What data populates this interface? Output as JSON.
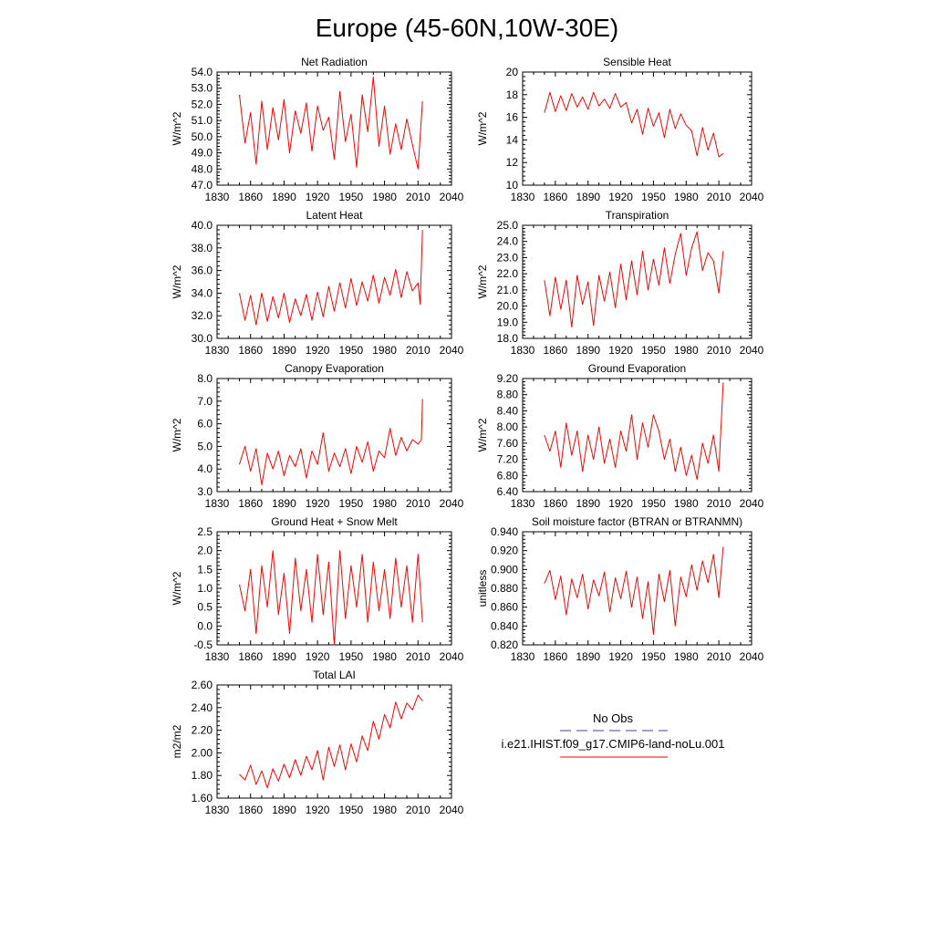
{
  "title": "Europe (45-60N,10W-30E)",
  "series_color": "#ff0000",
  "obs_color": "#4b3f8f",
  "legend": {
    "obs_label": "No Obs",
    "model_label": "i.e21.IHIST.f09_g17.CMIP6-land-noLu.001"
  },
  "chart_data": [
    {
      "type": "line",
      "title": "Net Radiation",
      "ylabel": "W/m^2",
      "xlim": [
        1830,
        2040
      ],
      "xticks": [
        1830,
        1860,
        1890,
        1920,
        1950,
        1980,
        2010,
        2040
      ],
      "ylim": [
        47.0,
        54.0
      ],
      "yticks": [
        "54.0",
        "53.0",
        "52.0",
        "51.0",
        "50.0",
        "49.0",
        "48.0",
        "47.0"
      ],
      "x": [
        1850,
        1855,
        1860,
        1865,
        1870,
        1875,
        1880,
        1885,
        1890,
        1895,
        1900,
        1905,
        1910,
        1915,
        1920,
        1925,
        1930,
        1935,
        1940,
        1945,
        1950,
        1955,
        1960,
        1965,
        1970,
        1975,
        1980,
        1985,
        1990,
        1995,
        2000,
        2005,
        2010,
        2014
      ],
      "series": [
        {
          "values": [
            52.6,
            49.6,
            51.5,
            48.3,
            52.2,
            49.2,
            51.8,
            49.8,
            52.3,
            49.0,
            51.6,
            50.2,
            52.1,
            49.1,
            51.9,
            50.4,
            51.2,
            48.6,
            52.8,
            49.7,
            51.4,
            48.1,
            52.6,
            50.3,
            53.7,
            49.4,
            51.9,
            48.9,
            50.8,
            49.2,
            51.1,
            49.5,
            48.0,
            52.2
          ]
        }
      ]
    },
    {
      "type": "line",
      "title": "Sensible Heat",
      "ylabel": "W/m^2",
      "xlim": [
        1830,
        2040
      ],
      "xticks": [
        1830,
        1860,
        1890,
        1920,
        1950,
        1980,
        2010,
        2040
      ],
      "ylim": [
        10,
        20
      ],
      "yticks": [
        "20",
        "18",
        "16",
        "14",
        "12",
        "10"
      ],
      "x": [
        1850,
        1855,
        1860,
        1865,
        1870,
        1875,
        1880,
        1885,
        1890,
        1895,
        1900,
        1905,
        1910,
        1915,
        1920,
        1925,
        1930,
        1935,
        1940,
        1945,
        1950,
        1955,
        1960,
        1965,
        1970,
        1975,
        1980,
        1985,
        1990,
        1995,
        2000,
        2005,
        2010,
        2014
      ],
      "series": [
        {
          "values": [
            16.4,
            18.2,
            16.5,
            17.9,
            16.6,
            18.1,
            16.9,
            17.8,
            16.7,
            18.2,
            17.0,
            17.6,
            16.8,
            18.1,
            16.9,
            17.3,
            15.5,
            16.7,
            14.5,
            16.8,
            15.2,
            16.4,
            14.2,
            16.7,
            15.0,
            16.3,
            15.3,
            14.8,
            12.6,
            15.1,
            13.1,
            14.6,
            12.5,
            12.8
          ]
        }
      ]
    },
    {
      "type": "line",
      "title": "Latent Heat",
      "ylabel": "W/m^2",
      "xlim": [
        1830,
        2040
      ],
      "xticks": [
        1830,
        1860,
        1890,
        1920,
        1950,
        1980,
        2010,
        2040
      ],
      "ylim": [
        30.0,
        40.0
      ],
      "yticks": [
        "40.0",
        "38.0",
        "36.0",
        "34.0",
        "32.0",
        "30.0"
      ],
      "x": [
        1850,
        1855,
        1860,
        1865,
        1870,
        1875,
        1880,
        1885,
        1890,
        1895,
        1900,
        1905,
        1910,
        1915,
        1920,
        1925,
        1930,
        1935,
        1940,
        1945,
        1950,
        1955,
        1960,
        1965,
        1970,
        1975,
        1980,
        1985,
        1990,
        1995,
        2000,
        2005,
        2010,
        2012,
        2014
      ],
      "series": [
        {
          "values": [
            34.0,
            31.6,
            33.8,
            31.2,
            34.0,
            31.5,
            33.7,
            31.8,
            34.0,
            31.4,
            33.5,
            32.0,
            33.9,
            31.6,
            34.1,
            31.9,
            34.6,
            32.4,
            34.9,
            32.7,
            35.3,
            32.9,
            35.0,
            33.3,
            35.6,
            33.1,
            35.4,
            33.8,
            36.1,
            33.6,
            35.9,
            34.2,
            34.9,
            33.0,
            39.6
          ]
        }
      ]
    },
    {
      "type": "line",
      "title": "Transpiration",
      "ylabel": "W/m^2",
      "xlim": [
        1830,
        2040
      ],
      "xticks": [
        1830,
        1860,
        1890,
        1920,
        1950,
        1980,
        2010,
        2040
      ],
      "ylim": [
        18.0,
        25.0
      ],
      "yticks": [
        "25.0",
        "24.0",
        "23.0",
        "22.0",
        "21.0",
        "20.0",
        "19.0",
        "18.0"
      ],
      "x": [
        1850,
        1855,
        1860,
        1865,
        1870,
        1875,
        1880,
        1885,
        1890,
        1895,
        1900,
        1905,
        1910,
        1915,
        1920,
        1925,
        1930,
        1935,
        1940,
        1945,
        1950,
        1955,
        1960,
        1965,
        1970,
        1975,
        1980,
        1985,
        1990,
        1995,
        2000,
        2005,
        2010,
        2014
      ],
      "series": [
        {
          "values": [
            21.6,
            19.4,
            21.8,
            19.8,
            21.6,
            18.7,
            21.9,
            20.1,
            21.5,
            18.8,
            21.9,
            20.3,
            22.1,
            19.9,
            22.6,
            20.4,
            22.8,
            20.7,
            23.4,
            21.0,
            22.9,
            21.3,
            23.6,
            21.4,
            23.2,
            24.5,
            21.9,
            23.6,
            24.6,
            22.2,
            23.3,
            22.8,
            20.8,
            23.4
          ]
        }
      ]
    },
    {
      "type": "line",
      "title": "Canopy Evaporation",
      "ylabel": "W/m^2",
      "xlim": [
        1830,
        2040
      ],
      "xticks": [
        1830,
        1860,
        1890,
        1920,
        1950,
        1980,
        2010,
        2040
      ],
      "ylim": [
        3.0,
        8.0
      ],
      "yticks": [
        "8.0",
        "7.0",
        "6.0",
        "5.0",
        "4.0",
        "3.0"
      ],
      "x": [
        1850,
        1855,
        1860,
        1865,
        1870,
        1875,
        1880,
        1885,
        1890,
        1895,
        1900,
        1905,
        1910,
        1915,
        1920,
        1925,
        1930,
        1935,
        1940,
        1945,
        1950,
        1955,
        1960,
        1965,
        1970,
        1975,
        1980,
        1985,
        1990,
        1995,
        2000,
        2005,
        2010,
        2013,
        2014
      ],
      "series": [
        {
          "values": [
            4.2,
            5.0,
            3.9,
            4.9,
            3.3,
            4.7,
            4.0,
            4.8,
            3.7,
            4.6,
            4.1,
            4.9,
            3.6,
            4.8,
            4.2,
            5.6,
            3.9,
            4.7,
            4.1,
            4.9,
            3.8,
            5.0,
            4.3,
            5.2,
            3.9,
            4.8,
            4.5,
            5.8,
            4.6,
            5.4,
            4.8,
            5.3,
            5.1,
            5.3,
            7.1
          ]
        }
      ]
    },
    {
      "type": "line",
      "title": "Ground Evaporation",
      "ylabel": "W/m^2",
      "xlim": [
        1830,
        2040
      ],
      "xticks": [
        1830,
        1860,
        1890,
        1920,
        1950,
        1980,
        2010,
        2040
      ],
      "ylim": [
        6.4,
        9.2
      ],
      "yticks": [
        "9.20",
        "8.80",
        "8.40",
        "8.00",
        "7.60",
        "7.20",
        "6.80",
        "6.40"
      ],
      "x": [
        1850,
        1855,
        1860,
        1865,
        1870,
        1875,
        1880,
        1885,
        1890,
        1895,
        1900,
        1905,
        1910,
        1915,
        1920,
        1925,
        1930,
        1935,
        1940,
        1945,
        1950,
        1955,
        1960,
        1965,
        1970,
        1975,
        1980,
        1985,
        1990,
        1995,
        2000,
        2005,
        2010,
        2014
      ],
      "series": [
        {
          "values": [
            7.8,
            7.4,
            7.9,
            7.0,
            8.1,
            7.3,
            7.9,
            6.9,
            7.8,
            7.2,
            8.0,
            7.1,
            7.7,
            7.0,
            7.9,
            7.4,
            8.3,
            7.2,
            8.1,
            7.5,
            8.3,
            7.9,
            7.2,
            7.7,
            6.9,
            7.5,
            6.8,
            7.3,
            6.7,
            7.6,
            7.1,
            7.8,
            6.9,
            9.1
          ]
        }
      ]
    },
    {
      "type": "line",
      "title": "Ground Heat + Snow Melt",
      "ylabel": "W/m^2",
      "xlim": [
        1830,
        2040
      ],
      "xticks": [
        1830,
        1860,
        1890,
        1920,
        1950,
        1980,
        2010,
        2040
      ],
      "ylim": [
        -0.5,
        2.5
      ],
      "yticks": [
        "2.5",
        "2.0",
        "1.5",
        "1.0",
        "0.5",
        "0.0",
        "-0.5"
      ],
      "x": [
        1850,
        1855,
        1860,
        1865,
        1870,
        1875,
        1880,
        1885,
        1890,
        1895,
        1900,
        1905,
        1910,
        1915,
        1920,
        1925,
        1930,
        1935,
        1940,
        1945,
        1950,
        1955,
        1960,
        1965,
        1970,
        1975,
        1980,
        1985,
        1990,
        1995,
        2000,
        2005,
        2010,
        2014
      ],
      "series": [
        {
          "values": [
            1.1,
            0.4,
            1.5,
            -0.2,
            1.6,
            0.5,
            2.0,
            0.3,
            1.4,
            -0.2,
            1.8,
            0.4,
            1.5,
            0.1,
            1.9,
            0.3,
            1.7,
            -0.5,
            2.0,
            0.2,
            1.6,
            0.5,
            1.9,
            0.1,
            1.7,
            0.4,
            1.5,
            0.2,
            1.8,
            0.5,
            1.6,
            0.1,
            1.9,
            0.1
          ]
        }
      ]
    },
    {
      "type": "line",
      "title": "Soil moisture factor (BTRAN or BTRANMN)",
      "ylabel": "unitless",
      "xlim": [
        1830,
        2040
      ],
      "xticks": [
        1830,
        1860,
        1890,
        1920,
        1950,
        1980,
        2010,
        2040
      ],
      "ylim": [
        0.82,
        0.94
      ],
      "yticks": [
        "0.940",
        "0.920",
        "0.900",
        "0.880",
        "0.860",
        "0.840",
        "0.820"
      ],
      "x": [
        1850,
        1855,
        1860,
        1865,
        1870,
        1875,
        1880,
        1885,
        1890,
        1895,
        1900,
        1905,
        1910,
        1915,
        1920,
        1925,
        1930,
        1935,
        1940,
        1945,
        1950,
        1955,
        1960,
        1965,
        1970,
        1975,
        1980,
        1985,
        1990,
        1995,
        2000,
        2005,
        2010,
        2014
      ],
      "series": [
        {
          "values": [
            0.885,
            0.899,
            0.868,
            0.893,
            0.852,
            0.89,
            0.87,
            0.895,
            0.858,
            0.889,
            0.872,
            0.897,
            0.855,
            0.891,
            0.869,
            0.898,
            0.86,
            0.892,
            0.848,
            0.887,
            0.831,
            0.895,
            0.866,
            0.899,
            0.84,
            0.892,
            0.871,
            0.905,
            0.878,
            0.909,
            0.886,
            0.916,
            0.87,
            0.924
          ]
        }
      ]
    },
    {
      "type": "line",
      "title": "Total LAI",
      "ylabel": "m2/m2",
      "xlim": [
        1830,
        2040
      ],
      "xticks": [
        1830,
        1860,
        1890,
        1920,
        1950,
        1980,
        2010,
        2040
      ],
      "ylim": [
        1.6,
        2.6
      ],
      "yticks": [
        "2.60",
        "2.40",
        "2.20",
        "2.00",
        "1.80",
        "1.60"
      ],
      "x": [
        1850,
        1855,
        1860,
        1865,
        1870,
        1875,
        1880,
        1885,
        1890,
        1895,
        1900,
        1905,
        1910,
        1915,
        1920,
        1925,
        1930,
        1935,
        1940,
        1945,
        1950,
        1955,
        1960,
        1965,
        1970,
        1975,
        1980,
        1985,
        1990,
        1995,
        2000,
        2005,
        2010,
        2014
      ],
      "series": [
        {
          "values": [
            1.81,
            1.76,
            1.89,
            1.72,
            1.84,
            1.69,
            1.86,
            1.75,
            1.9,
            1.78,
            1.94,
            1.8,
            1.97,
            1.85,
            2.02,
            1.76,
            2.05,
            1.88,
            2.07,
            1.85,
            2.08,
            1.92,
            2.15,
            2.02,
            2.28,
            2.12,
            2.34,
            2.22,
            2.45,
            2.3,
            2.44,
            2.38,
            2.51,
            2.46
          ]
        }
      ]
    }
  ]
}
